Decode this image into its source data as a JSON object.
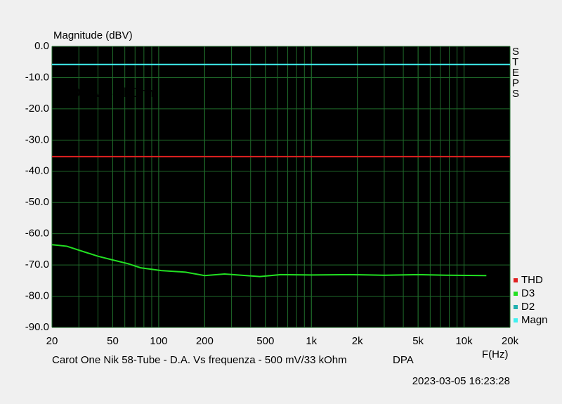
{
  "chart_data": {
    "type": "line",
    "ylabel": "Magnitude (dBV)",
    "xlabel": "F(Hz)",
    "title": "Carot One Nik 58-Tube - D.A. Vs frequenza - 500 mV/33 kOhm",
    "tag": "DPA",
    "timestamp": "2023-03-05 16:23:28",
    "side_label": "STEPS",
    "annotations": [
      {
        "text": "500 mV",
        "color": "#e01818"
      },
      {
        "text": "33 kOhm",
        "color": "#30e8f0"
      }
    ],
    "xscale": "log",
    "grid": true,
    "xlim": [
      20,
      20000
    ],
    "xticks": [
      20,
      50,
      100,
      200,
      500,
      {
        "value": 1000,
        "label": "1k"
      },
      {
        "value": 2000,
        "label": "2k"
      },
      {
        "value": 5000,
        "label": "5k"
      },
      {
        "value": 10000,
        "label": "10k"
      },
      {
        "value": 20000,
        "label": "20k"
      }
    ],
    "ylim": [
      -90,
      0
    ],
    "yticks": [
      {
        "value": 0,
        "label": "0.0"
      },
      {
        "value": -10,
        "label": "-10.0"
      },
      {
        "value": -20,
        "label": "-20.0"
      },
      {
        "value": -30,
        "label": "-30.0"
      },
      {
        "value": -40,
        "label": "-40.0"
      },
      {
        "value": -50,
        "label": "-50.0"
      },
      {
        "value": -60,
        "label": "-60.0"
      },
      {
        "value": -70,
        "label": "-70.0"
      },
      {
        "value": -80,
        "label": "-80.0"
      },
      {
        "value": -90,
        "label": "-90.0"
      }
    ],
    "x": [
      20,
      25,
      32,
      40,
      50,
      63,
      76,
      104,
      150,
      200,
      270,
      460,
      630,
      1000,
      1800,
      3000,
      5000,
      8000,
      14000,
      20000
    ],
    "series": [
      {
        "name": "THD",
        "color": "#e02020",
        "values": [
          -35.3,
          -35.3,
          -35.3,
          -35.3,
          -35.3,
          -35.3,
          -35.3,
          -35.3,
          -35.3,
          -35.3,
          -35.3,
          -35.3,
          -35.3,
          -35.3,
          -35.3,
          -35.3,
          -35.3,
          -35.3,
          -35.3,
          -35.3
        ]
      },
      {
        "name": "D3",
        "color": "#22e022",
        "values": [
          -63.5,
          -64.0,
          -65.7,
          -67.2,
          -68.4,
          -69.6,
          -70.9,
          -71.8,
          -72.3,
          -73.4,
          -72.9,
          -73.7,
          -73.1,
          -73.2,
          -73.1,
          -73.3,
          -73.1,
          -73.3,
          -73.4,
          null
        ]
      },
      {
        "name": "D2",
        "color": "#20b0b0",
        "values": [
          null,
          null,
          null,
          null,
          null,
          null,
          null,
          null,
          null,
          null,
          null,
          null,
          null,
          null,
          null,
          null,
          null,
          null,
          null,
          null
        ]
      },
      {
        "name": "Magn",
        "color": "#40f0f0",
        "values": [
          -5.8,
          -5.8,
          -5.8,
          -5.8,
          -5.8,
          -5.8,
          -5.8,
          -5.8,
          -5.8,
          -5.8,
          -5.8,
          -5.8,
          -5.8,
          -5.8,
          -5.8,
          -5.8,
          -5.8,
          -5.8,
          -5.8,
          -5.8
        ]
      }
    ]
  }
}
